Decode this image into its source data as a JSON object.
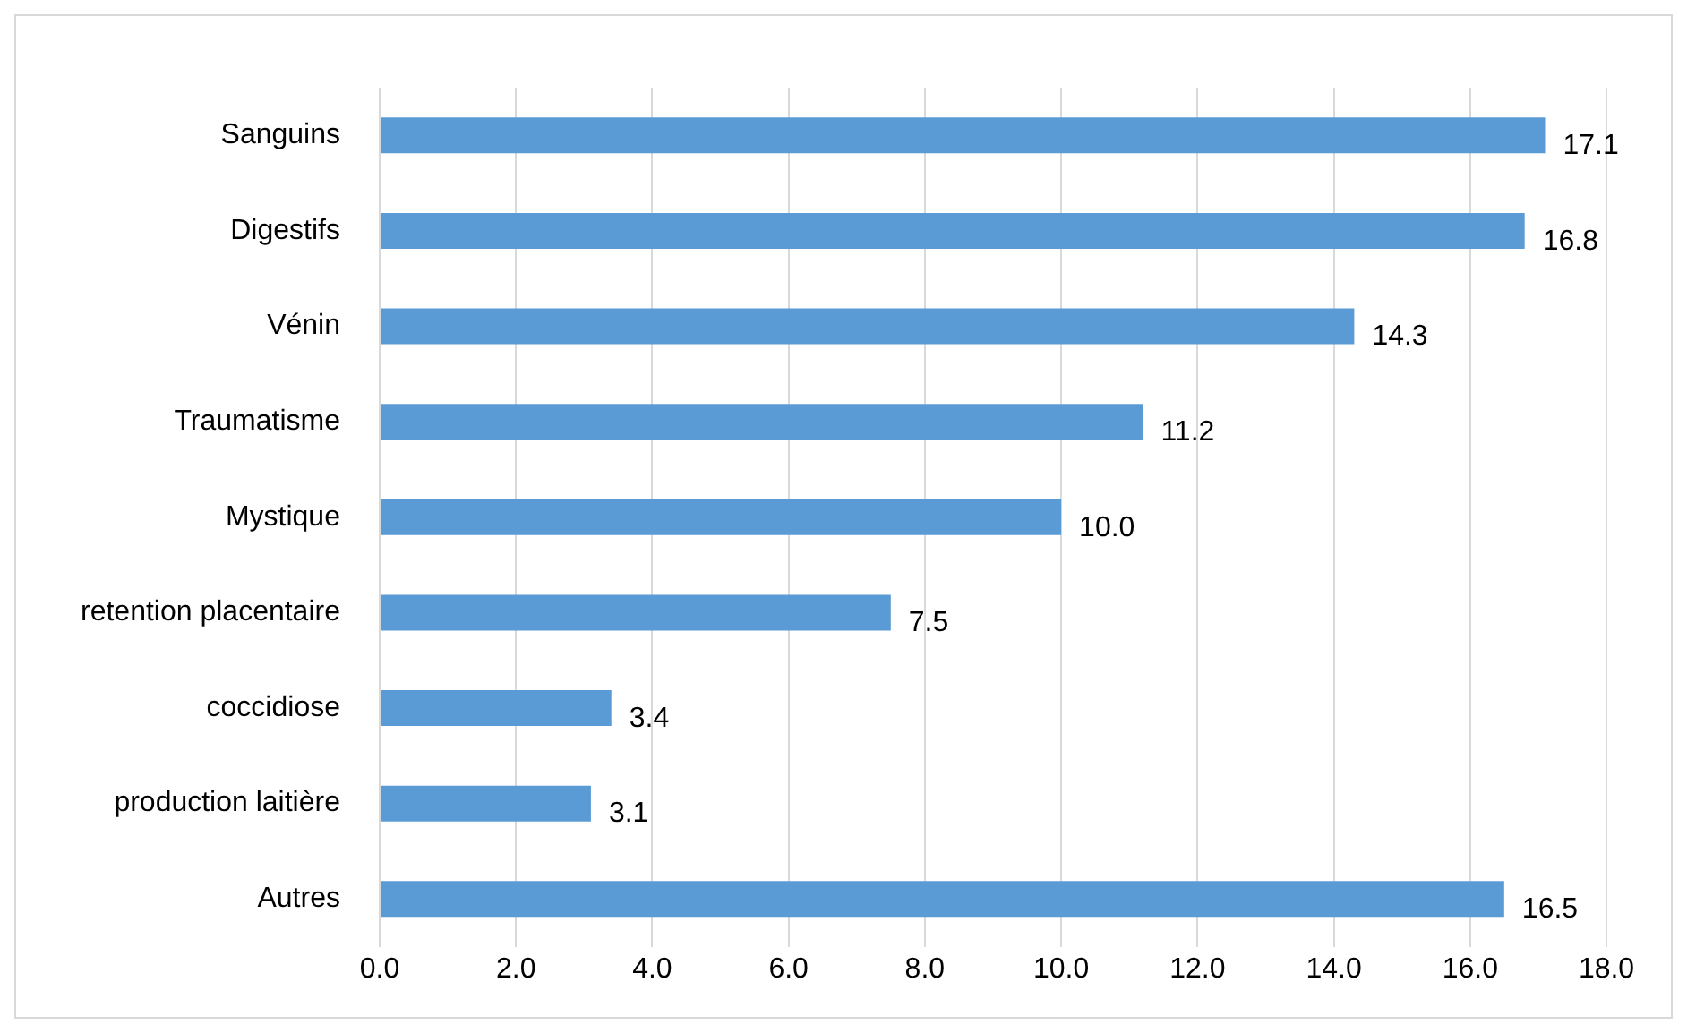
{
  "chart_data": {
    "type": "bar",
    "orientation": "horizontal",
    "categories": [
      "Sanguins",
      "Digestifs",
      "Vénin",
      "Traumatisme",
      "Mystique",
      "retention placentaire",
      "coccidiose",
      "production laitière",
      "Autres"
    ],
    "values": [
      17.1,
      16.8,
      14.3,
      11.2,
      10.0,
      7.5,
      3.4,
      3.1,
      16.5
    ],
    "value_labels": [
      "17.1",
      "16.8",
      "14.3",
      "11.2",
      "10.0",
      "7.5",
      "3.4",
      "3.1",
      "16.5"
    ],
    "color": "#5b9bd5",
    "xlim": [
      0,
      18
    ],
    "xticks": [
      {
        "value": 0,
        "label": "0.0"
      },
      {
        "value": 2,
        "label": "2.0"
      },
      {
        "value": 4,
        "label": "4.0"
      },
      {
        "value": 6,
        "label": "6.0"
      },
      {
        "value": 8,
        "label": "8.0"
      },
      {
        "value": 10,
        "label": "10.0"
      },
      {
        "value": 12,
        "label": "12.0"
      },
      {
        "value": 14,
        "label": "14.0"
      },
      {
        "value": 16,
        "label": "16.0"
      },
      {
        "value": 18,
        "label": "18.0"
      }
    ],
    "grid": "x"
  }
}
